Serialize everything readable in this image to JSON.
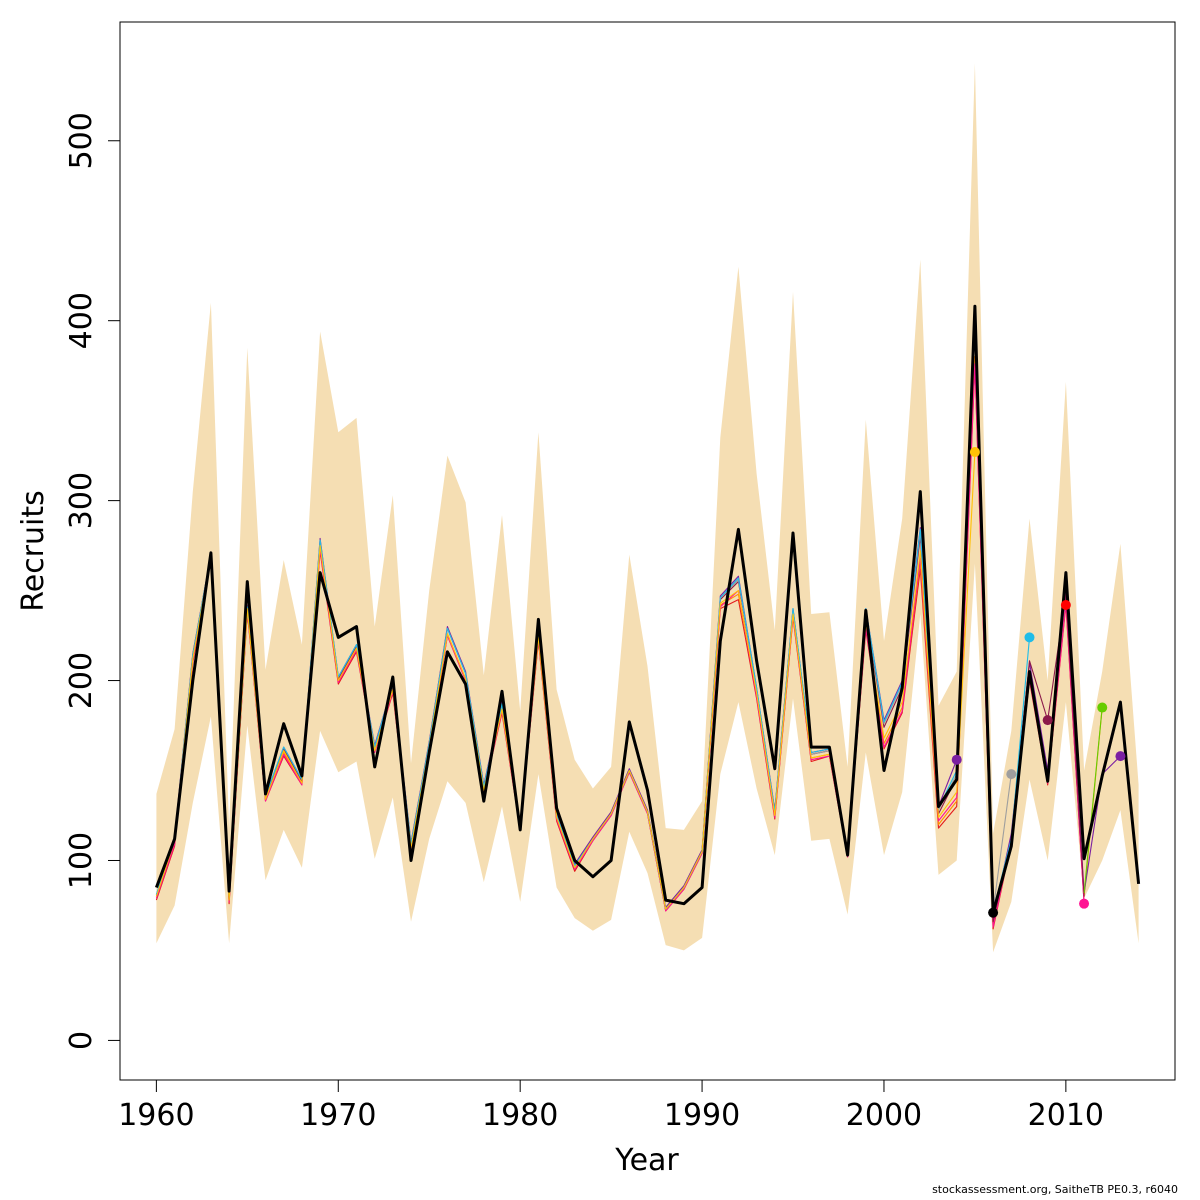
{
  "footer": "stockassessment.org, SaitheTB  PE0.3, r6040",
  "chart_data": {
    "type": "line",
    "xlabel": "Year",
    "ylabel": "Recruits",
    "xlim": [
      1958,
      2016
    ],
    "ylim": [
      -22,
      566
    ],
    "xticks": [
      1960,
      1970,
      1980,
      1990,
      2000,
      2010
    ],
    "yticks": [
      0,
      100,
      200,
      300,
      400,
      500
    ],
    "band_color": "#F5DEB3",
    "main_color": "#000000",
    "band": {
      "years": [
        1960,
        1961,
        1962,
        1963,
        1964,
        1965,
        1966,
        1967,
        1968,
        1969,
        1970,
        1971,
        1972,
        1973,
        1974,
        1975,
        1976,
        1977,
        1978,
        1979,
        1980,
        1981,
        1982,
        1983,
        1984,
        1985,
        1986,
        1987,
        1988,
        1989,
        1990,
        1991,
        1992,
        1993,
        1994,
        1995,
        1996,
        1997,
        1998,
        1999,
        2000,
        2001,
        2002,
        2003,
        2004,
        2005,
        2006,
        2007,
        2008,
        2009,
        2010,
        2011,
        2012,
        2013,
        2014
      ],
      "upper": [
        137,
        173,
        305,
        410,
        118,
        385,
        206,
        267,
        220,
        394,
        338,
        346,
        230,
        303,
        154,
        250,
        325,
        299,
        203,
        292,
        183,
        338,
        195,
        156,
        140,
        152,
        270,
        208,
        118,
        117,
        133,
        335,
        430,
        315,
        228,
        416,
        237,
        238,
        152,
        345,
        222,
        290,
        434,
        186,
        205,
        543,
        115,
        172,
        290,
        200,
        366,
        150,
        205,
        276,
        142
      ],
      "lower": [
        54,
        75,
        132,
        180,
        54,
        175,
        89,
        117,
        96,
        172,
        149,
        155,
        101,
        135,
        66,
        112,
        144,
        132,
        88,
        130,
        77,
        148,
        85,
        68,
        61,
        67,
        116,
        93,
        53,
        50,
        57,
        148,
        188,
        140,
        103,
        190,
        111,
        112,
        70,
        160,
        103,
        138,
        237,
        92,
        100,
        265,
        49,
        77,
        145,
        100,
        188,
        79,
        100,
        128,
        54
      ]
    },
    "series": [
      {
        "color": "#000000",
        "years": [
          1960,
          1961,
          1962,
          1963,
          1964,
          1965,
          1966,
          1967,
          1968,
          1969,
          1970,
          1971,
          1972,
          1973,
          1974,
          1975,
          1976,
          1977,
          1978,
          1979,
          1980,
          1981,
          1982,
          1983,
          1984,
          1985,
          1986,
          1987,
          1988,
          1989,
          1990,
          1991,
          1992,
          1993,
          1994,
          1995,
          1996,
          1997,
          1998,
          1999,
          2000,
          2001,
          2002,
          2003,
          2004,
          2005,
          2006,
          2007,
          2008,
          2009,
          2010,
          2011,
          2012,
          2013,
          2014
        ],
        "values": [
          85,
          112,
          200,
          271,
          83,
          255,
          137,
          176,
          147,
          260,
          224,
          230,
          152,
          202,
          100,
          160,
          216,
          198,
          133,
          194,
          117,
          234,
          129,
          100,
          91,
          100,
          177,
          139,
          78,
          76,
          85,
          222,
          284,
          211,
          151,
          282,
          163,
          163,
          103,
          239,
          150,
          196,
          305,
          130,
          145,
          408,
          71,
          108,
          205,
          144,
          260,
          101,
          147,
          188,
          87
        ]
      },
      {
        "color": "#E41A1C",
        "years": [
          1960,
          1961,
          1962,
          1963,
          1964,
          1965,
          1966,
          1967,
          1968,
          1969,
          1970,
          1971,
          1972,
          1973,
          1974,
          1975,
          1976,
          1977,
          1978,
          1979,
          1980,
          1981,
          1982,
          1983,
          1984,
          1985,
          1986,
          1987,
          1988,
          1989,
          1990,
          1991,
          1992,
          1993,
          1994,
          1995,
          1996,
          1997,
          1998,
          1999,
          2000,
          2001,
          2002,
          2003,
          2004,
          2005,
          2006,
          2007,
          2008,
          2009,
          2010,
          2011
        ],
        "values": [
          78,
          108,
          210,
          268,
          76,
          238,
          133,
          158,
          142,
          272,
          198,
          216,
          160,
          193,
          106,
          162,
          225,
          200,
          138,
          182,
          117,
          222,
          122,
          94,
          111,
          125,
          149,
          126,
          72,
          84,
          104,
          240,
          245,
          190,
          123,
          235,
          155,
          158,
          102,
          228,
          162,
          182,
          262,
          118,
          130,
          375,
          62,
          110,
          200,
          142,
          242,
          76
        ]
      },
      {
        "color": "#FF8C00",
        "years": [
          1960,
          1961,
          1962,
          1963,
          1964,
          1965,
          1966,
          1967,
          1968,
          1969,
          1970,
          1971,
          1972,
          1973,
          1974,
          1975,
          1976,
          1977,
          1978,
          1979,
          1980,
          1981,
          1982,
          1983,
          1984,
          1985,
          1986,
          1987,
          1988,
          1989,
          1990,
          1991,
          1992,
          1993,
          1994,
          1995,
          1996,
          1997,
          1998,
          1999,
          2000,
          2001,
          2002,
          2003,
          2004,
          2005,
          2006,
          2007,
          2008,
          2009,
          2010,
          2011,
          2012
        ],
        "values": [
          80,
          110,
          212,
          269,
          78,
          240,
          134,
          160,
          143,
          274,
          200,
          218,
          161,
          195,
          107,
          163,
          226,
          201,
          139,
          184,
          118,
          224,
          124,
          96,
          112,
          126,
          150,
          127,
          73,
          85,
          105,
          242,
          248,
          193,
          125,
          237,
          157,
          159,
          103,
          230,
          165,
          185,
          266,
          120,
          133,
          380,
          64,
          112,
          202,
          144,
          244,
          80,
          185
        ]
      },
      {
        "color": "#FF1493",
        "years": [
          1960,
          1961,
          1962,
          1963,
          1964,
          1965,
          1966,
          1967,
          1968,
          1969,
          1970,
          1971,
          1972,
          1973,
          1974,
          1975,
          1976,
          1977,
          1978,
          1979,
          1980,
          1981,
          1982,
          1983,
          1984,
          1985,
          1986,
          1987,
          1988,
          1989,
          1990,
          1991,
          1992,
          1993,
          1994,
          1995,
          1996,
          1997,
          1998,
          1999,
          2000,
          2001,
          2002,
          2003,
          2004,
          2005,
          2006,
          2007,
          2008,
          2009,
          2010,
          2011
        ],
        "values": [
          79,
          109,
          211,
          268,
          77,
          239,
          133,
          159,
          142,
          273,
          199,
          217,
          160,
          194,
          106,
          162,
          225,
          200,
          138,
          183,
          117,
          223,
          123,
          95,
          111,
          125,
          149,
          126,
          72,
          84,
          104,
          241,
          250,
          191,
          124,
          236,
          156,
          158,
          102,
          229,
          163,
          183,
          268,
          122,
          135,
          376,
          63,
          111,
          201,
          143,
          243,
          76
        ]
      },
      {
        "color": "#7B1FA2",
        "years": [
          1960,
          1961,
          1962,
          1963,
          1964,
          1965,
          1966,
          1967,
          1968,
          1969,
          1970,
          1971,
          1972,
          1973,
          1974,
          1975,
          1976,
          1977,
          1978,
          1979,
          1980,
          1981,
          1982,
          1983,
          1984,
          1985,
          1986,
          1987,
          1988,
          1989,
          1990,
          1991,
          1992,
          1993,
          1994,
          1995,
          1996,
          1997,
          1998,
          1999,
          2000,
          2001,
          2002,
          2003,
          2004,
          2005,
          2006,
          2007,
          2008,
          2009,
          2010,
          2011,
          2012,
          2013
        ],
        "values": [
          81,
          113,
          215,
          270,
          79,
          242,
          136,
          163,
          145,
          279,
          202,
          220,
          164,
          198,
          110,
          166,
          230,
          205,
          142,
          188,
          120,
          228,
          126,
          98,
          113,
          127,
          151,
          128,
          74,
          86,
          106,
          247,
          258,
          196,
          128,
          240,
          160,
          162,
          104,
          240,
          178,
          200,
          285,
          130,
          156,
          398,
          68,
          115,
          210,
          150,
          250,
          82,
          148,
          158
        ]
      },
      {
        "color": "#8B1A4A",
        "years": [
          1960,
          1961,
          1962,
          1963,
          1964,
          1965,
          1966,
          1967,
          1968,
          1969,
          1970,
          1971,
          1972,
          1973,
          1974,
          1975,
          1976,
          1977,
          1978,
          1979,
          1980,
          1981,
          1982,
          1983,
          1984,
          1985,
          1986,
          1987,
          1988,
          1989,
          1990,
          1991,
          1992,
          1993,
          1994,
          1995,
          1996,
          1997,
          1998,
          1999,
          2000,
          2001,
          2002,
          2003,
          2004,
          2005,
          2006,
          2007,
          2008,
          2009,
          2010,
          2011
        ],
        "values": [
          80,
          112,
          214,
          270,
          79,
          241,
          135,
          162,
          144,
          277,
          201,
          219,
          163,
          197,
          109,
          165,
          229,
          204,
          141,
          187,
          119,
          227,
          125,
          97,
          112,
          126,
          150,
          127,
          73,
          85,
          105,
          245,
          255,
          195,
          127,
          239,
          159,
          161,
          103,
          238,
          174,
          196,
          280,
          126,
          146,
          394,
          66,
          112,
          211,
          178,
          248,
          80
        ]
      },
      {
        "color": "#9E9E9E",
        "years": [
          1960,
          1961,
          1962,
          1963,
          1964,
          1965,
          1966,
          1967,
          1968,
          1969,
          1970,
          1971,
          1972,
          1973,
          1974,
          1975,
          1976,
          1977,
          1978,
          1979,
          1980,
          1981,
          1982,
          1983,
          1984,
          1985,
          1986,
          1987,
          1988,
          1989,
          1990,
          1991,
          1992,
          1993,
          1994,
          1995,
          1996,
          1997,
          1998,
          1999,
          2000,
          2001,
          2002,
          2003,
          2004,
          2005,
          2006,
          2007
        ],
        "values": [
          81,
          112,
          214,
          270,
          79,
          241,
          136,
          163,
          145,
          278,
          202,
          220,
          163,
          198,
          109,
          165,
          229,
          204,
          141,
          187,
          119,
          227,
          125,
          97,
          112,
          126,
          150,
          127,
          73,
          85,
          105,
          246,
          256,
          195,
          127,
          239,
          159,
          161,
          103,
          239,
          176,
          198,
          283,
          128,
          148,
          400,
          72,
          148
        ]
      },
      {
        "color": "#1FBCE8",
        "years": [
          1960,
          1961,
          1962,
          1963,
          1964,
          1965,
          1966,
          1967,
          1968,
          1969,
          1970,
          1971,
          1972,
          1973,
          1974,
          1975,
          1976,
          1977,
          1978,
          1979,
          1980,
          1981,
          1982,
          1983,
          1984,
          1985,
          1986,
          1987,
          1988,
          1989,
          1990,
          1991,
          1992,
          1993,
          1994,
          1995,
          1996,
          1997,
          1998,
          1999,
          2000,
          2001,
          2002,
          2003,
          2004,
          2005,
          2006,
          2007,
          2008
        ],
        "values": [
          81,
          112,
          214,
          270,
          79,
          241,
          136,
          163,
          145,
          278,
          202,
          220,
          163,
          198,
          109,
          165,
          229,
          204,
          141,
          187,
          119,
          227,
          125,
          97,
          112,
          126,
          150,
          127,
          73,
          85,
          105,
          246,
          257,
          196,
          127,
          240,
          160,
          162,
          104,
          240,
          177,
          199,
          284,
          129,
          150,
          402,
          72,
          112,
          224
        ]
      },
      {
        "color": "#FFC107",
        "years": [
          1960,
          1961,
          1962,
          1963,
          1964,
          1965,
          1966,
          1967,
          1968,
          1969,
          1970,
          1971,
          1972,
          1973,
          1974,
          1975,
          1976,
          1977,
          1978,
          1979,
          1980,
          1981,
          1982,
          1983,
          1984,
          1985,
          1986,
          1987,
          1988,
          1989,
          1990,
          1991,
          1992,
          1993,
          1994,
          1995,
          1996,
          1997,
          1998,
          1999,
          2000,
          2001,
          2002,
          2003,
          2004,
          2005
        ],
        "values": [
          80,
          111,
          212,
          269,
          78,
          240,
          134,
          161,
          143,
          275,
          200,
          218,
          161,
          195,
          107,
          163,
          226,
          201,
          139,
          184,
          118,
          224,
          124,
          96,
          112,
          126,
          150,
          127,
          73,
          85,
          105,
          243,
          250,
          193,
          125,
          237,
          157,
          159,
          103,
          232,
          168,
          188,
          272,
          124,
          138,
          327
        ]
      },
      {
        "color": "#66CC00",
        "years": [
          2011,
          2012
        ],
        "values": [
          82,
          185
        ]
      }
    ],
    "points": [
      {
        "year": 2004,
        "value": 156,
        "color": "#7B1FA2"
      },
      {
        "year": 2005,
        "value": 327,
        "color": "#FFC107"
      },
      {
        "year": 2006,
        "value": 71,
        "color": "#000000"
      },
      {
        "year": 2007,
        "value": 148,
        "color": "#9E9E9E"
      },
      {
        "year": 2008,
        "value": 224,
        "color": "#1FBCE8"
      },
      {
        "year": 2009,
        "value": 178,
        "color": "#8B1A4A"
      },
      {
        "year": 2010,
        "value": 242,
        "color": "#FF0000"
      },
      {
        "year": 2011,
        "value": 76,
        "color": "#FF1493"
      },
      {
        "year": 2012,
        "value": 185,
        "color": "#66CC00"
      },
      {
        "year": 2013,
        "value": 158,
        "color": "#7B1FA2"
      }
    ]
  }
}
